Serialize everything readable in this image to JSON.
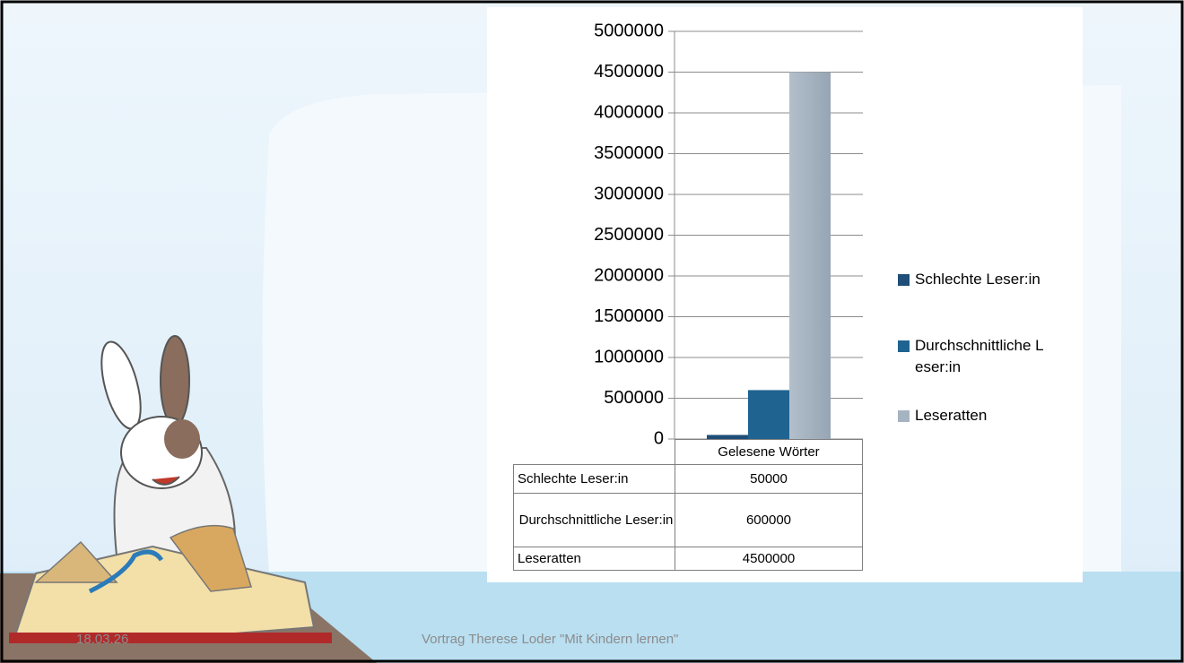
{
  "chart_data": {
    "type": "bar",
    "categories": [
      "Gelesene Wörter"
    ],
    "series": [
      {
        "name": "Schlechte Leser:in",
        "color": "#1f4e79",
        "values": [
          50000
        ]
      },
      {
        "name": "Durchschnittliche Leser:in",
        "color": "#1f6391",
        "values": [
          600000
        ]
      },
      {
        "name": "Leseratten",
        "color": "#a6b4c2",
        "values": [
          4500000
        ]
      }
    ],
    "ylim": [
      0,
      5000000
    ],
    "yticks": [
      0,
      500000,
      1000000,
      1500000,
      2000000,
      2500000,
      3000000,
      3500000,
      4000000,
      4500000,
      5000000
    ],
    "grid": true,
    "legend": "right",
    "data_table": true
  },
  "footer": {
    "date": "18.03.26",
    "text": "Vortrag Therese Loder \"Mit Kindern lernen\""
  }
}
